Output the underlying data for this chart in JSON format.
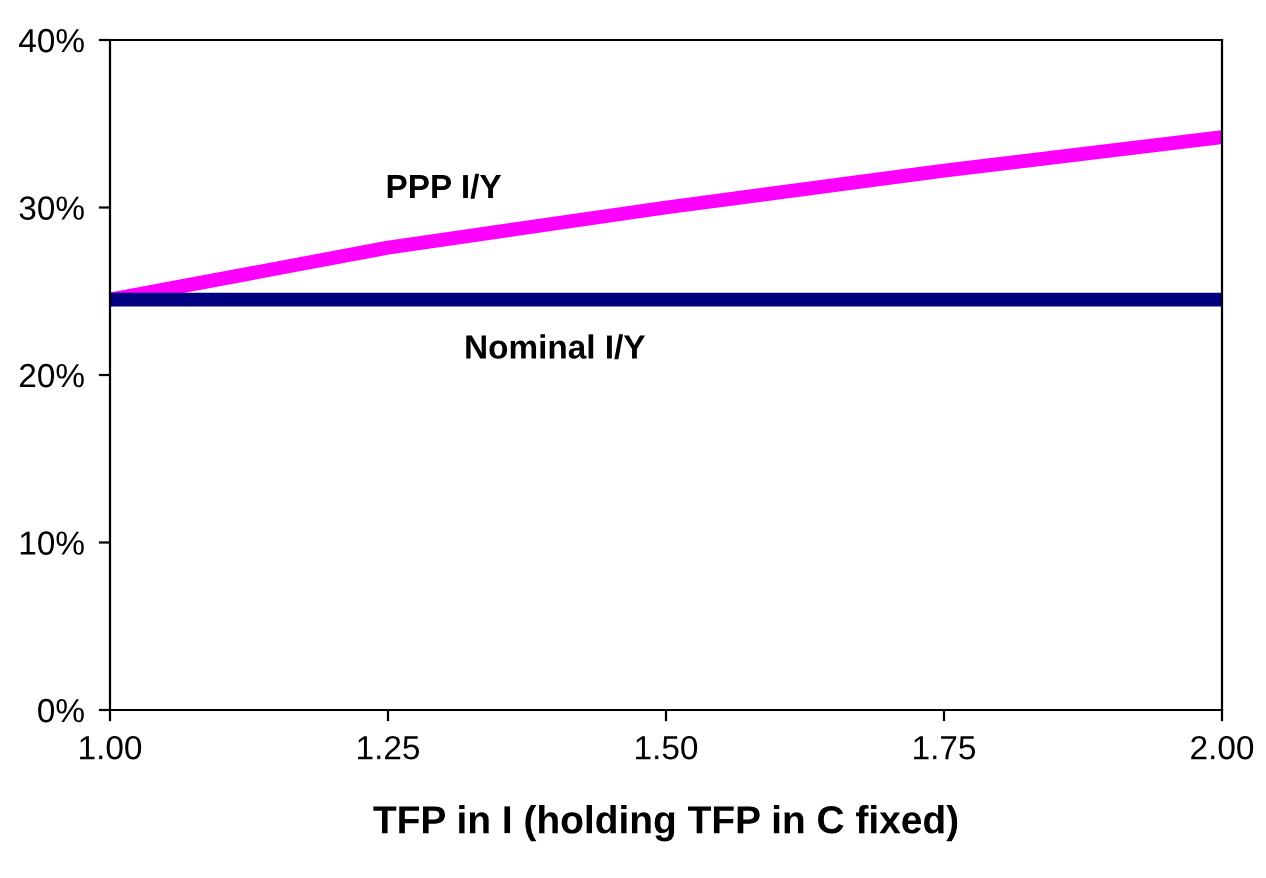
{
  "chart_data": {
    "type": "line",
    "xlabel": "TFP in I (holding TFP in C fixed)",
    "x": [
      1.0,
      1.25,
      1.5,
      1.75,
      2.0
    ],
    "series": [
      {
        "name": "PPP I/Y",
        "color": "#ff00ff",
        "values": [
          24.5,
          27.6,
          30.0,
          32.2,
          34.2
        ]
      },
      {
        "name": "Nominal I/Y",
        "color": "#000080",
        "values": [
          24.5,
          24.5,
          24.5,
          24.5,
          24.5
        ]
      }
    ],
    "xlim": [
      1.0,
      2.0
    ],
    "xticks": [
      {
        "value": 1.0,
        "label": "1.00"
      },
      {
        "value": 1.25,
        "label": "1.25"
      },
      {
        "value": 1.5,
        "label": "1.50"
      },
      {
        "value": 1.75,
        "label": "1.75"
      },
      {
        "value": 2.0,
        "label": "2.00"
      }
    ],
    "ylim": [
      0,
      40
    ],
    "yticks": [
      {
        "value": 0,
        "label": "0%"
      },
      {
        "value": 10,
        "label": "10%"
      },
      {
        "value": 20,
        "label": "20%"
      },
      {
        "value": 30,
        "label": "30%"
      },
      {
        "value": 40,
        "label": "40%"
      }
    ],
    "grid": false,
    "legend": false,
    "marker": "none",
    "line_style": "solid"
  }
}
